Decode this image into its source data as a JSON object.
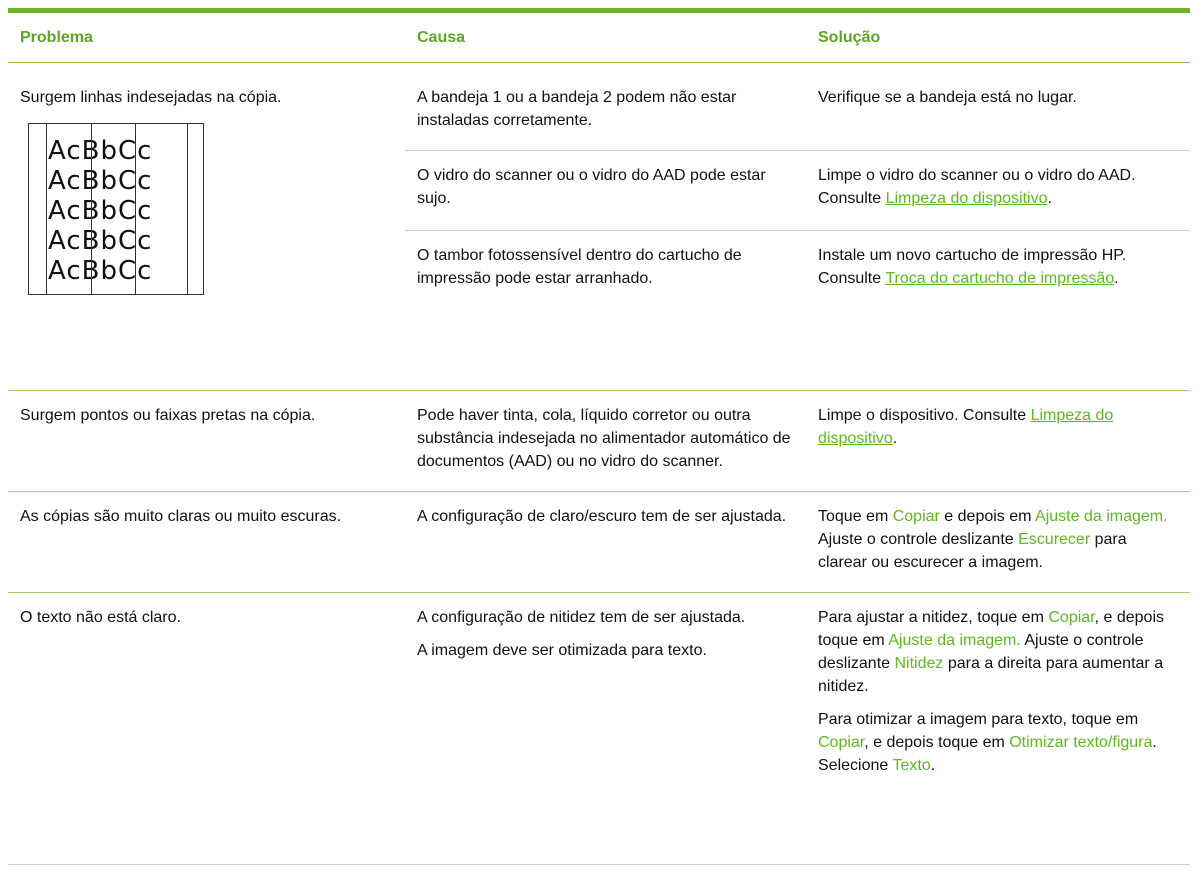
{
  "header": {
    "columns": [
      "Problema",
      "Causa",
      "Solução"
    ]
  },
  "rows": [
    {
      "problem": [
        [
          {
            "text": "Surgem linhas indesejadas na cópia."
          }
        ]
      ],
      "illustration": [
        "AcBbCc",
        "AcBbCc",
        "AcBbCc",
        "AcBbCc",
        "AcBbCc"
      ],
      "entries": [
        {
          "cause": [
            [
              {
                "text": "A bandeja 1 ou a bandeja 2 podem não estar instaladas corretamente."
              }
            ]
          ],
          "solution": [
            [
              {
                "text": "Verifique se a bandeja está no lugar."
              }
            ]
          ]
        },
        {
          "cause": [
            [
              {
                "text": "O vidro do scanner ou o vidro do AAD pode estar sujo."
              }
            ]
          ],
          "solution": [
            [
              {
                "text": "Limpe o vidro do scanner ou o vidro do AAD. Consulte "
              },
              {
                "text": "Limpeza do dispositivo",
                "style": "link"
              },
              {
                "text": "."
              }
            ]
          ]
        },
        {
          "cause": [
            [
              {
                "text": "O tambor fotossensível dentro do cartucho de impressão pode estar arranhado."
              }
            ]
          ],
          "solution": [
            [
              {
                "text": "Instale um novo cartucho de impressão HP. Consulte "
              },
              {
                "text": "Troca do cartucho de impressão",
                "style": "link"
              },
              {
                "text": "."
              }
            ]
          ]
        }
      ]
    },
    {
      "problem": [
        [
          {
            "text": "Surgem pontos ou faixas pretas na cópia."
          }
        ]
      ],
      "entries": [
        {
          "cause": [
            [
              {
                "text": "Pode haver tinta, cola, líquido corretor ou outra substância indesejada no alimentador automático de documentos (AAD) ou no vidro do scanner."
              }
            ]
          ],
          "solution": [
            [
              {
                "text": "Limpe o dispositivo. Consulte "
              },
              {
                "text": "Limpeza do dispositivo",
                "style": "link"
              },
              {
                "text": "."
              }
            ]
          ]
        }
      ]
    },
    {
      "problem": [
        [
          {
            "text": "As cópias são muito claras ou muito escuras."
          }
        ]
      ],
      "entries": [
        {
          "cause": [
            [
              {
                "text": "A configuração de claro/escuro tem de ser ajustada."
              }
            ]
          ],
          "solution": [
            [
              {
                "text": "Toque em "
              },
              {
                "text": "Copiar",
                "style": "ui"
              },
              {
                "text": " e depois em "
              },
              {
                "text": "Ajuste da imagem.",
                "style": "ui"
              },
              {
                "text": " Ajuste o controle deslizante "
              },
              {
                "text": "Escurecer",
                "style": "ui"
              },
              {
                "text": " para clarear ou escurecer a imagem."
              }
            ]
          ]
        }
      ]
    },
    {
      "problem": [
        [
          {
            "text": "O texto não está claro."
          }
        ]
      ],
      "entries": [
        {
          "cause": [
            [
              {
                "text": "A configuração de nitidez tem de ser ajustada."
              }
            ],
            [
              {
                "text": "A imagem deve ser otimizada para texto."
              }
            ]
          ],
          "solution": [
            [
              {
                "text": "Para ajustar a nitidez, toque em "
              },
              {
                "text": "Copiar",
                "style": "ui"
              },
              {
                "text": ", e depois toque em "
              },
              {
                "text": "Ajuste da imagem.",
                "style": "ui"
              },
              {
                "text": " Ajuste o controle deslizante "
              },
              {
                "text": "Nitidez",
                "style": "ui"
              },
              {
                "text": " para a direita para aumentar a nitidez."
              }
            ],
            [
              {
                "text": "Para otimizar a imagem para texto, toque em "
              },
              {
                "text": "Copiar",
                "style": "ui"
              },
              {
                "text": ", e depois toque em "
              },
              {
                "text": "Otimizar texto/figura",
                "style": "ui"
              },
              {
                "text": ". Selecione "
              },
              {
                "text": "Texto",
                "style": "ui"
              },
              {
                "text": "."
              }
            ]
          ]
        }
      ]
    }
  ]
}
